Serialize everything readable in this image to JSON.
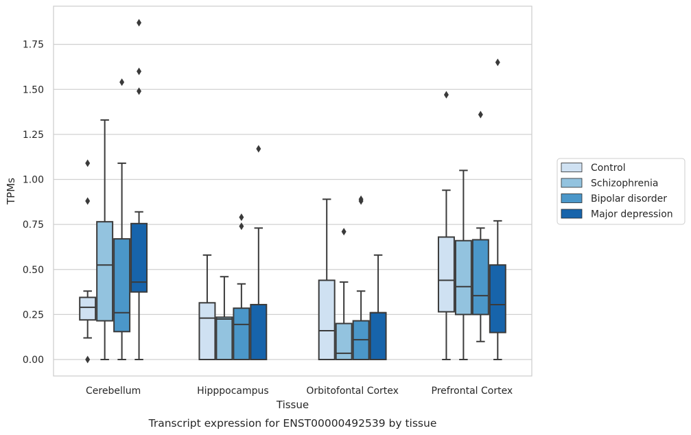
{
  "caption": "Transcript expression for ENST00000492539 by tissue",
  "chart_data": {
    "type": "boxplot",
    "xlabel": "Tissue",
    "ylabel": "TPMs",
    "ylim": [
      -0.09,
      1.96
    ],
    "yticks": [
      "0.00",
      "0.25",
      "0.50",
      "0.75",
      "1.00",
      "1.25",
      "1.50",
      "1.75"
    ],
    "grid": "horizontal",
    "legend_position": "right",
    "categories": [
      "Cerebellum",
      "Hipppocampus",
      "Orbitofontal Cortex",
      "Prefrontal Cortex"
    ],
    "series": [
      {
        "name": "Control",
        "color": "#cfe1f2",
        "boxes": [
          {
            "q1": 0.22,
            "median": 0.29,
            "q3": 0.345,
            "whisker_low": 0.12,
            "whisker_high": 0.38,
            "outliers": [
              0.0,
              0.88,
              1.09
            ]
          },
          {
            "q1": 0.0,
            "median": 0.23,
            "q3": 0.315,
            "whisker_low": 0.0,
            "whisker_high": 0.58,
            "outliers": []
          },
          {
            "q1": 0.0,
            "median": 0.16,
            "q3": 0.44,
            "whisker_low": 0.0,
            "whisker_high": 0.89,
            "outliers": []
          },
          {
            "q1": 0.265,
            "median": 0.44,
            "q3": 0.68,
            "whisker_low": 0.0,
            "whisker_high": 0.94,
            "outliers": [
              1.47
            ]
          }
        ]
      },
      {
        "name": "Schizophrenia",
        "color": "#93c3df",
        "boxes": [
          {
            "q1": 0.215,
            "median": 0.525,
            "q3": 0.765,
            "whisker_low": 0.0,
            "whisker_high": 1.33,
            "outliers": []
          },
          {
            "q1": 0.0,
            "median": 0.225,
            "q3": 0.235,
            "whisker_low": 0.0,
            "whisker_high": 0.46,
            "outliers": []
          },
          {
            "q1": 0.0,
            "median": 0.035,
            "q3": 0.2,
            "whisker_low": 0.0,
            "whisker_high": 0.43,
            "outliers": [
              0.71
            ]
          },
          {
            "q1": 0.25,
            "median": 0.405,
            "q3": 0.66,
            "whisker_low": 0.0,
            "whisker_high": 1.05,
            "outliers": []
          }
        ]
      },
      {
        "name": "Bipolar disorder",
        "color": "#4b97c9",
        "boxes": [
          {
            "q1": 0.155,
            "median": 0.26,
            "q3": 0.67,
            "whisker_low": 0.0,
            "whisker_high": 1.09,
            "outliers": [
              1.54
            ]
          },
          {
            "q1": 0.0,
            "median": 0.195,
            "q3": 0.285,
            "whisker_low": 0.0,
            "whisker_high": 0.42,
            "outliers": [
              0.74,
              0.79
            ]
          },
          {
            "q1": 0.0,
            "median": 0.11,
            "q3": 0.215,
            "whisker_low": 0.0,
            "whisker_high": 0.38,
            "outliers": [
              0.88,
              0.89
            ]
          },
          {
            "q1": 0.25,
            "median": 0.355,
            "q3": 0.665,
            "whisker_low": 0.1,
            "whisker_high": 0.73,
            "outliers": [
              1.36
            ]
          }
        ]
      },
      {
        "name": "Major depression",
        "color": "#1764ab",
        "boxes": [
          {
            "q1": 0.375,
            "median": 0.43,
            "q3": 0.755,
            "whisker_low": 0.0,
            "whisker_high": 0.82,
            "outliers": [
              1.49,
              1.6,
              1.87
            ]
          },
          {
            "q1": 0.0,
            "median": 0.305,
            "q3": 0.305,
            "whisker_low": 0.0,
            "whisker_high": 0.73,
            "outliers": [
              1.17
            ]
          },
          {
            "q1": 0.0,
            "median": 0.26,
            "q3": 0.26,
            "whisker_low": 0.0,
            "whisker_high": 0.58,
            "outliers": []
          },
          {
            "q1": 0.15,
            "median": 0.305,
            "q3": 0.525,
            "whisker_low": 0.0,
            "whisker_high": 0.77,
            "outliers": [
              1.65
            ]
          }
        ]
      }
    ]
  }
}
